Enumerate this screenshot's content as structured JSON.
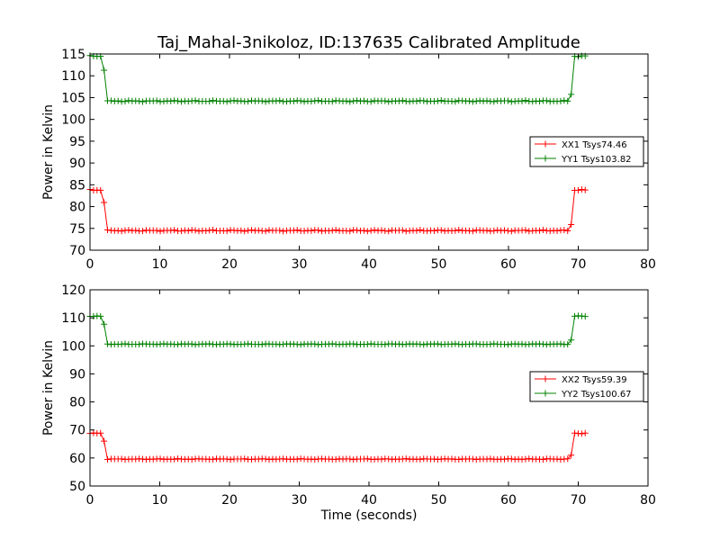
{
  "figure": {
    "title": "Taj_Mahal-3nikoloz, ID:137635 Calibrated Amplitude",
    "xlabel": "Time (seconds)"
  },
  "chart_data": [
    {
      "type": "line",
      "ylabel": "Power in Kelvin",
      "xlim": [
        0,
        80
      ],
      "ylim": [
        70,
        115
      ],
      "xticks": [
        0,
        10,
        20,
        30,
        40,
        50,
        60,
        70,
        80
      ],
      "yticks": [
        70,
        75,
        80,
        85,
        90,
        95,
        100,
        105,
        110,
        115
      ],
      "legend_position": "center-right",
      "grid": false,
      "series": [
        {
          "name": "XX1 Tsys74.46",
          "color": "#ff0000",
          "x_start": 0,
          "x_end": 71,
          "n": 142,
          "high": 83.8,
          "low": 74.5,
          "drop_start": 2.0,
          "drop_end": 2.5,
          "rise_start": 68.5,
          "rise_end": 69.0,
          "noise": 0.15
        },
        {
          "name": "YY1 Tsys103.82",
          "color": "#008000",
          "x_start": 0,
          "x_end": 71,
          "n": 142,
          "high": 114.5,
          "low": 104.2,
          "drop_start": 2.0,
          "drop_end": 2.5,
          "rise_start": 68.5,
          "rise_end": 69.0,
          "noise": 0.15
        }
      ]
    },
    {
      "type": "line",
      "ylabel": "Power in Kelvin",
      "xlabel": "Time (seconds)",
      "xlim": [
        0,
        80
      ],
      "ylim": [
        50,
        120
      ],
      "xticks": [
        0,
        10,
        20,
        30,
        40,
        50,
        60,
        70,
        80
      ],
      "yticks": [
        50,
        60,
        70,
        80,
        90,
        100,
        110,
        120
      ],
      "legend_position": "center-right",
      "grid": false,
      "series": [
        {
          "name": "XX2 Tsys59.39",
          "color": "#ff0000",
          "x_start": 0,
          "x_end": 71,
          "n": 142,
          "high": 68.8,
          "low": 59.6,
          "drop_start": 2.0,
          "drop_end": 2.5,
          "rise_start": 68.5,
          "rise_end": 69.0,
          "noise": 0.15
        },
        {
          "name": "YY2 Tsys100.67",
          "color": "#008000",
          "x_start": 0,
          "x_end": 71,
          "n": 142,
          "high": 110.6,
          "low": 100.6,
          "drop_start": 2.0,
          "drop_end": 2.5,
          "rise_start": 68.5,
          "rise_end": 69.0,
          "noise": 0.15
        }
      ]
    }
  ]
}
